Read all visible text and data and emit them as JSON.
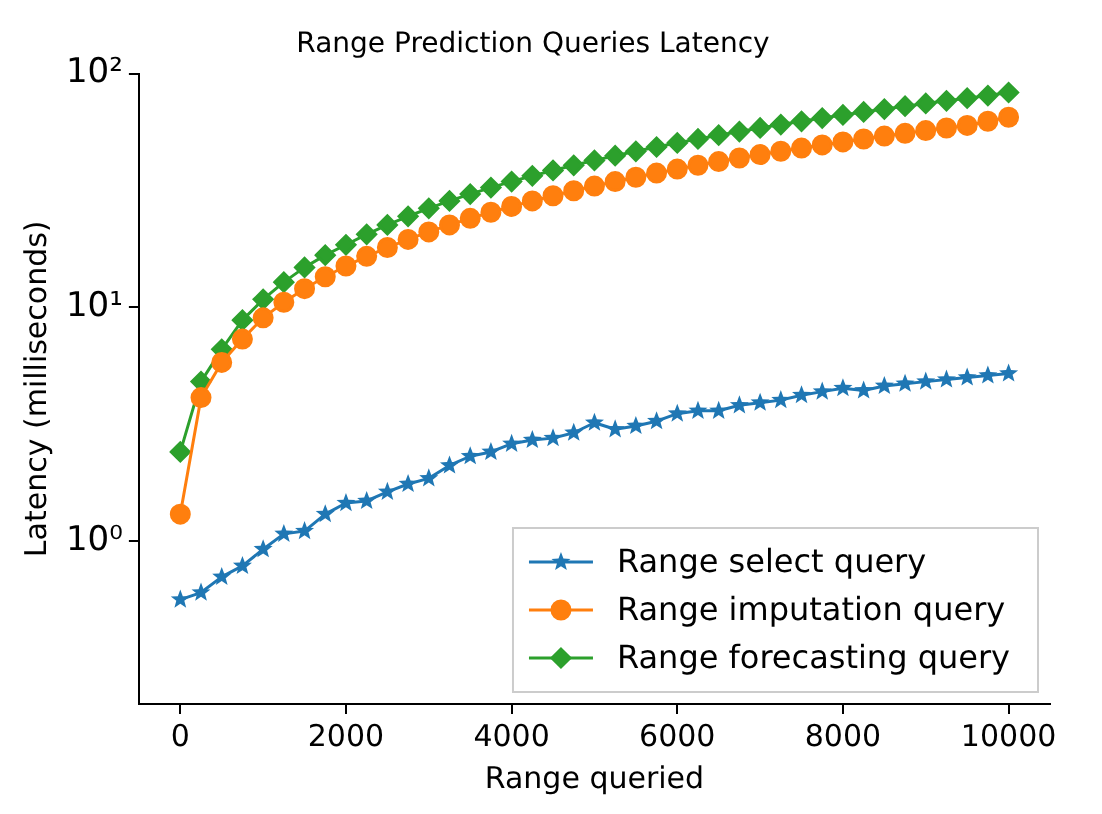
{
  "chart_data": {
    "type": "line",
    "title": "Range Prediction Queries Latency",
    "xlabel": "Range queried",
    "ylabel": "Latency (milliseconds)",
    "x": [
      0,
      250,
      500,
      750,
      1000,
      1250,
      1500,
      1750,
      2000,
      2250,
      2500,
      2750,
      3000,
      3250,
      3500,
      3750,
      4000,
      4250,
      4500,
      4750,
      5000,
      5250,
      5500,
      5750,
      6000,
      6250,
      6500,
      6750,
      7000,
      7250,
      7500,
      7750,
      8000,
      8250,
      8500,
      8750,
      9000,
      9250,
      9500,
      9750,
      10000
    ],
    "series": [
      {
        "name": "Range select query",
        "color": "#1f77b4",
        "marker": "star",
        "values": [
          0.56,
          0.6,
          0.7,
          0.78,
          0.92,
          1.07,
          1.1,
          1.3,
          1.45,
          1.48,
          1.62,
          1.75,
          1.85,
          2.1,
          2.3,
          2.4,
          2.6,
          2.7,
          2.75,
          2.9,
          3.2,
          3.0,
          3.1,
          3.25,
          3.5,
          3.6,
          3.6,
          3.8,
          3.9,
          4.0,
          4.2,
          4.35,
          4.5,
          4.4,
          4.6,
          4.7,
          4.8,
          4.9,
          5.0,
          5.1,
          5.2
        ]
      },
      {
        "name": "Range imputation query",
        "color": "#ff7f0e",
        "marker": "circle",
        "values": [
          1.3,
          4.1,
          5.8,
          7.3,
          9.0,
          10.5,
          12,
          13.5,
          15,
          16.5,
          18,
          19.5,
          21,
          22.5,
          24,
          25.5,
          27,
          28.5,
          30,
          31.5,
          33,
          34.5,
          36,
          37.5,
          39,
          40.5,
          42,
          43.5,
          45,
          46.5,
          48,
          49.5,
          51,
          52.5,
          54,
          55.5,
          57,
          58.5,
          60,
          62.5,
          65
        ]
      },
      {
        "name": "Range forecasting query",
        "color": "#2ca02c",
        "marker": "diamond",
        "values": [
          2.4,
          4.8,
          6.6,
          8.8,
          10.8,
          12.8,
          14.8,
          16.7,
          18.5,
          20.5,
          22.5,
          24.5,
          26.5,
          28.5,
          30.5,
          32.5,
          34.5,
          36.5,
          38.5,
          40.5,
          42.5,
          44.5,
          46.5,
          48.5,
          50.5,
          52.5,
          54.5,
          56.5,
          58.5,
          60.5,
          62.5,
          64.5,
          66.5,
          68.5,
          70.5,
          72.5,
          74.5,
          76.5,
          78.5,
          80.5,
          83
        ]
      }
    ],
    "log": "y",
    "xlim": [
      -500,
      10500
    ],
    "xticks": [
      0,
      2000,
      4000,
      6000,
      8000,
      10000
    ],
    "ylim": [
      0.2,
      100
    ],
    "yticks": [
      {
        "value": 1,
        "label": "10⁰"
      },
      {
        "value": 10,
        "label": "10¹"
      },
      {
        "value": 100,
        "label": "10²"
      }
    ],
    "legend": "bottom right",
    "line_style": "solid"
  }
}
